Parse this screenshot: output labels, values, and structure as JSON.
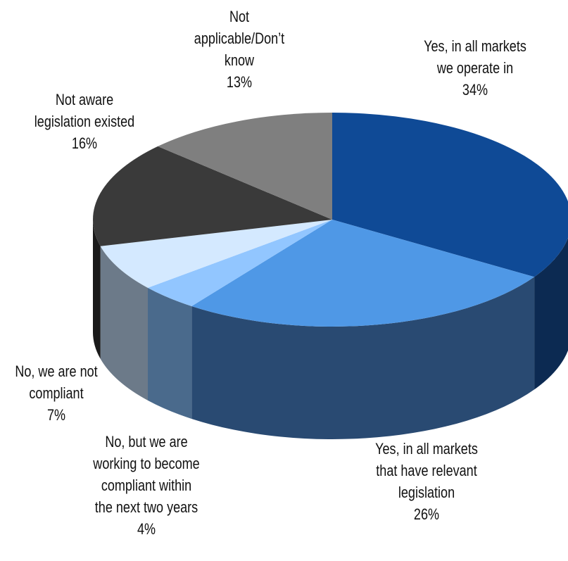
{
  "chart_data": {
    "type": "pie",
    "style": "3d-exploded-oval",
    "title": "",
    "slices": [
      {
        "label_lines": [
          "Yes, in all markets",
          "we operate in"
        ],
        "value": 34,
        "value_label": "34%",
        "top_color": "#0f4a96",
        "side_color": "#0c2a52"
      },
      {
        "label_lines": [
          "Yes, in all markets",
          "that have relevant",
          "legislation"
        ],
        "value": 26,
        "value_label": "26%",
        "top_color": "#4f98e6",
        "side_color": "#294a72"
      },
      {
        "label_lines": [
          "No, but we are",
          "working to become",
          "compliant within",
          "the next two years"
        ],
        "value": 4,
        "value_label": "4%",
        "top_color": "#92c6ff",
        "side_color": "#4a6a8c"
      },
      {
        "label_lines": [
          "No, we are not",
          "compliant"
        ],
        "value": 7,
        "value_label": "7%",
        "top_color": "#d4e9ff",
        "side_color": "#6c7a89"
      },
      {
        "label_lines": [
          "Not aware",
          "legislation existed"
        ],
        "value": 16,
        "value_label": "16%",
        "top_color": "#3a3a3a",
        "side_color": "#1a1a1a"
      },
      {
        "label_lines": [
          "Not",
          "applicable/Don’t",
          "know"
        ],
        "value": 13,
        "value_label": "13%",
        "top_color": "#7f7f7f",
        "side_color": "#555555"
      }
    ]
  }
}
